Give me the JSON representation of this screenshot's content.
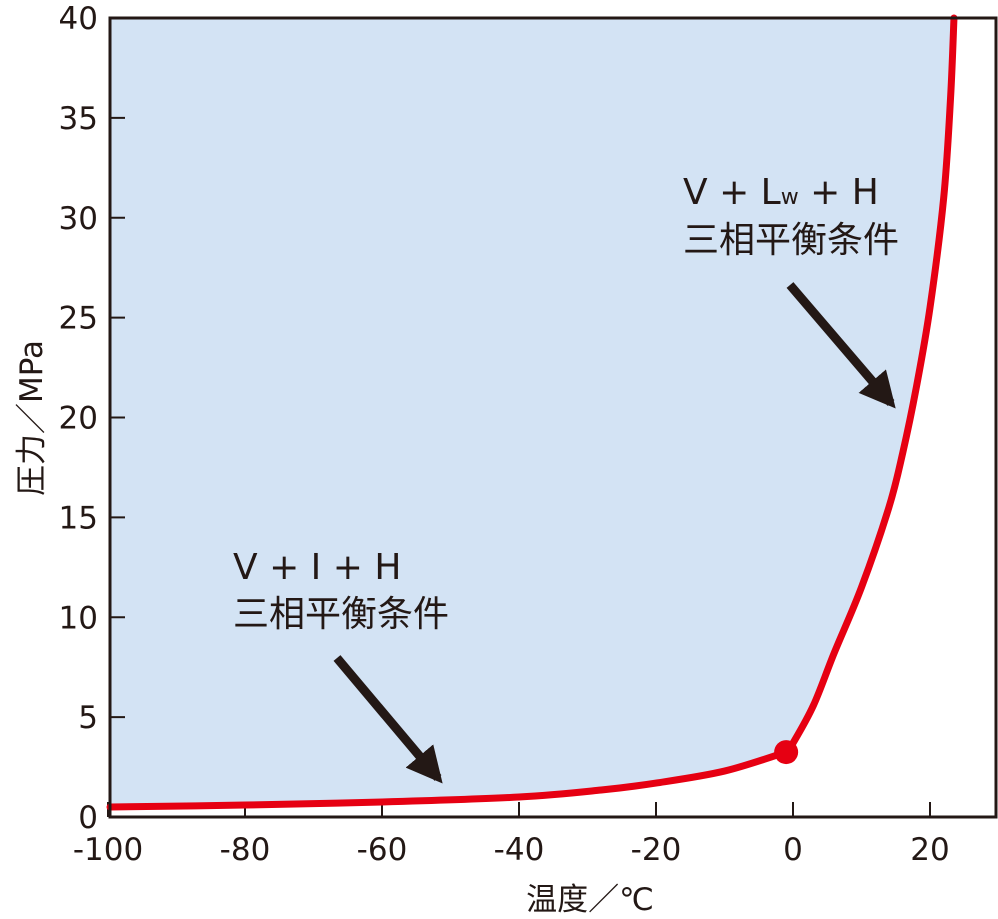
{
  "chart_data": {
    "type": "line",
    "title": "",
    "xlabel": "温度／℃",
    "ylabel": "圧力／MPa",
    "xlim": [
      -100,
      30
    ],
    "ylim": [
      0,
      40
    ],
    "xticks": [
      -100,
      -80,
      -60,
      -40,
      -20,
      0,
      20
    ],
    "yticks": [
      0,
      5,
      10,
      15,
      20,
      25,
      30,
      35,
      40
    ],
    "grid": false,
    "series": [
      {
        "name": "V + I + H 三相平衡条件",
        "x": [
          -100,
          -80,
          -60,
          -40,
          -28,
          -20,
          -10,
          -1
        ],
        "y": [
          0.5,
          0.6,
          0.75,
          1.0,
          1.35,
          1.7,
          2.3,
          3.25
        ]
      },
      {
        "name": "V + Lw + H 三相平衡条件",
        "x": [
          -1,
          0,
          3,
          6,
          10,
          14,
          16,
          18,
          20,
          22,
          23,
          23.5
        ],
        "y": [
          3.25,
          3.7,
          5.6,
          8.2,
          11.5,
          15.5,
          18.2,
          21.5,
          25.5,
          31,
          36,
          40
        ]
      }
    ],
    "quadruple_point": {
      "x": -1,
      "y": 3.25
    },
    "hydrate_region_fill": "#d3e3f4",
    "line_color": "#e60012",
    "annotations": [
      {
        "line1_main": "V + L",
        "line1_sub": "w",
        "line1_tail": " + H",
        "line2": "三相平衡条件",
        "points_to": {
          "x": 15.5,
          "y": 20
        }
      },
      {
        "line1": "V + I + H",
        "line2": "三相平衡条件",
        "points_to": {
          "x": -51,
          "y": 0.8
        }
      }
    ]
  }
}
